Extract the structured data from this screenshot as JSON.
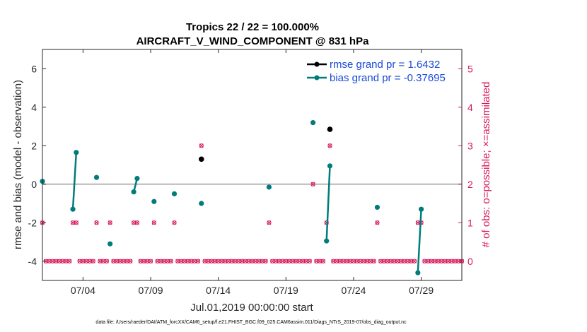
{
  "chart_data": {
    "type": "scatter",
    "title": "Tropics 22 / 22 = 100.000%",
    "subtitle": "AIRCRAFT_V_WIND_COMPONENT @ 831 hPa",
    "xlabel": "Jul.01,2019 00:00:00 start",
    "ylabel": "rmse and bias (model - observation)",
    "ylabel_right": "# of obs: o=possible; ×=assimilated",
    "footer": "data file: /Users/raeder/DAI/ATM_forcXX/CAM6_setup/f.e21.FHIST_BGC.f09_025.CAM6assim.011/Diags_NTrS_2019-07/obs_diag_output.nc",
    "xlim": [
      1,
      32
    ],
    "ylim": [
      -5,
      7
    ],
    "ylim_right": [
      -0.5,
      5.5
    ],
    "x_ticks": [
      4,
      9,
      14,
      19,
      24,
      29
    ],
    "x_tick_labels": [
      "07/04",
      "07/09",
      "07/14",
      "07/19",
      "07/24",
      "07/29"
    ],
    "y_ticks": [
      -4,
      -2,
      0,
      2,
      4,
      6
    ],
    "y_tick_labels": [
      "-4",
      "-2",
      "0",
      "2",
      "4",
      "6"
    ],
    "y_ticks_right": [
      0,
      1,
      2,
      3,
      4,
      5
    ],
    "y_tick_labels_right": [
      "0",
      "1",
      "2",
      "3",
      "4",
      "5"
    ],
    "colors": {
      "rmse": "#000000",
      "bias": "#007c7c",
      "obs": "#d6175a",
      "zero_line": "#b8b8b8",
      "axis": "#262626"
    },
    "legend": {
      "location": "top-right",
      "entries": [
        "rmse grand pr = 1.6432",
        "bias grand pr = -0.37695"
      ]
    },
    "series": [
      {
        "name": "rmse grand pr = 1.6432",
        "points": [
          [
            12.75,
            1.3
          ],
          [
            22.25,
            2.85
          ]
        ]
      },
      {
        "name": "bias grand pr = -0.37695",
        "points": [
          [
            1.0,
            0.15
          ],
          [
            3.25,
            -1.3
          ],
          [
            3.5,
            1.65
          ],
          [
            5.0,
            0.35
          ],
          [
            6.0,
            -3.1
          ],
          [
            7.75,
            -0.4
          ],
          [
            8.0,
            0.3
          ],
          [
            9.25,
            -0.9
          ],
          [
            10.75,
            -0.5
          ],
          [
            12.75,
            -1.0
          ],
          [
            17.75,
            -0.15
          ],
          [
            21.0,
            3.2
          ],
          [
            22.0,
            -2.95
          ],
          [
            22.25,
            0.95
          ],
          [
            25.75,
            -1.2
          ],
          [
            28.75,
            -4.6
          ],
          [
            29.0,
            -1.3
          ]
        ],
        "segments": [
          [
            [
              3.25,
              -1.3
            ],
            [
              3.5,
              1.65
            ]
          ],
          [
            [
              7.75,
              -0.4
            ],
            [
              8.0,
              0.3
            ]
          ],
          [
            [
              22.0,
              -2.95
            ],
            [
              22.25,
              0.95
            ]
          ],
          [
            [
              28.75,
              -4.6
            ],
            [
              29.0,
              -1.3
            ]
          ]
        ]
      },
      {
        "name": "# of obs possible / assimilated",
        "axis": "right",
        "points": [
          [
            1,
            1
          ],
          [
            3.25,
            1
          ],
          [
            3.5,
            1
          ],
          [
            5,
            1
          ],
          [
            6,
            1
          ],
          [
            7.75,
            1
          ],
          [
            8,
            1
          ],
          [
            9.25,
            1
          ],
          [
            10.75,
            1
          ],
          [
            12.75,
            3
          ],
          [
            17.75,
            1
          ],
          [
            21,
            2
          ],
          [
            22,
            1
          ],
          [
            22.25,
            3
          ],
          [
            25.75,
            1
          ],
          [
            28.75,
            1
          ],
          [
            29,
            1
          ]
        ]
      }
    ]
  }
}
